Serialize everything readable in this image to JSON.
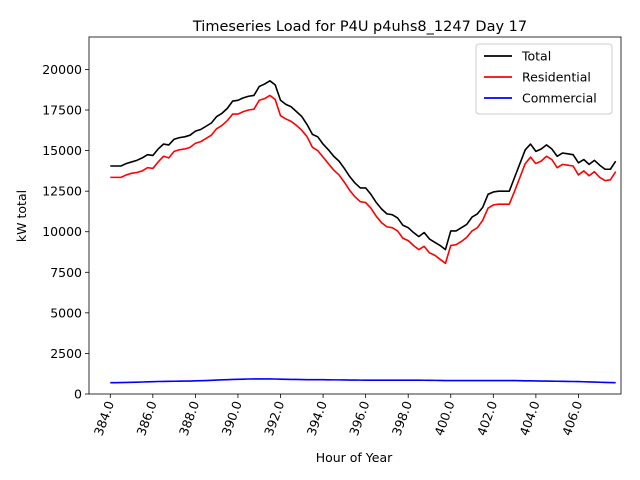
{
  "chart_data": {
    "type": "line",
    "title": "Timeseries Load for P4U p4uhs8_1247  Day 17",
    "xlabel": "Hour of Year",
    "ylabel": "kW total",
    "xlim": [
      383.0,
      408.0
    ],
    "ylim": [
      0,
      22000
    ],
    "x_ticks": [
      384,
      386,
      388,
      390,
      392,
      394,
      396,
      398,
      400,
      402,
      404,
      406
    ],
    "x_tick_labels": [
      "384.0",
      "386.0",
      "388.0",
      "390.0",
      "392.0",
      "394.0",
      "396.0",
      "398.0",
      "400.0",
      "402.0",
      "404.0",
      "406.0"
    ],
    "y_ticks": [
      0,
      2500,
      5000,
      7500,
      10000,
      12500,
      15000,
      17500,
      20000
    ],
    "y_tick_labels": [
      "0",
      "2500",
      "5000",
      "7500",
      "10000",
      "12500",
      "15000",
      "17500",
      "20000"
    ],
    "legend_position": "top-right",
    "x": [
      384.0,
      384.25,
      384.5,
      384.75,
      385.0,
      385.25,
      385.5,
      385.75,
      386.0,
      386.25,
      386.5,
      386.75,
      387.0,
      387.25,
      387.5,
      387.75,
      388.0,
      388.25,
      388.5,
      388.75,
      389.0,
      389.25,
      389.5,
      389.75,
      390.0,
      390.25,
      390.5,
      390.75,
      391.0,
      391.25,
      391.5,
      391.75,
      392.0,
      392.25,
      392.5,
      392.75,
      393.0,
      393.25,
      393.5,
      393.75,
      394.0,
      394.25,
      394.5,
      394.75,
      395.0,
      395.25,
      395.5,
      395.75,
      396.0,
      396.25,
      396.5,
      396.75,
      397.0,
      397.25,
      397.5,
      397.75,
      398.0,
      398.25,
      398.5,
      398.75,
      399.0,
      399.25,
      399.5,
      399.75,
      400.0,
      400.25,
      400.5,
      400.75,
      401.0,
      401.25,
      401.5,
      401.75,
      402.0,
      402.25,
      402.5,
      402.75,
      403.0,
      403.25,
      403.5,
      403.75,
      404.0,
      404.25,
      404.5,
      404.75,
      405.0,
      405.25,
      405.5,
      405.75,
      406.0,
      406.25,
      406.5,
      406.75,
      407.0,
      407.25,
      407.5,
      407.75
    ],
    "series": [
      {
        "name": "Total",
        "color": "#000000",
        "values": [
          14050,
          14050,
          14050,
          14200,
          14300,
          14400,
          14550,
          14750,
          14700,
          15100,
          15400,
          15350,
          15700,
          15800,
          15850,
          15950,
          16200,
          16300,
          16500,
          16700,
          17100,
          17300,
          17600,
          18050,
          18100,
          18250,
          18350,
          18400,
          18950,
          19100,
          19300,
          19050,
          18100,
          17850,
          17700,
          17400,
          17100,
          16600,
          16000,
          15850,
          15400,
          15050,
          14650,
          14350,
          13900,
          13400,
          13000,
          12700,
          12700,
          12300,
          11800,
          11400,
          11100,
          11050,
          10850,
          10400,
          10250,
          9950,
          9700,
          9950,
          9550,
          9350,
          9150,
          8900,
          10050,
          10050,
          10250,
          10450,
          10900,
          11100,
          11500,
          12300,
          12450,
          12500,
          12500,
          12500,
          13350,
          14200,
          15050,
          15400,
          14950,
          15100,
          15350,
          15100,
          14650,
          14850,
          14800,
          14750,
          14250,
          14450,
          14150,
          14400,
          14100,
          13850,
          13850,
          14350
        ]
      },
      {
        "name": "Residential",
        "color": "#ff0000",
        "values": [
          13350,
          13350,
          13350,
          13500,
          13600,
          13650,
          13750,
          13950,
          13900,
          14300,
          14650,
          14550,
          14950,
          15050,
          15100,
          15200,
          15450,
          15550,
          15750,
          15950,
          16350,
          16550,
          16850,
          17250,
          17250,
          17400,
          17500,
          17550,
          18100,
          18200,
          18400,
          18150,
          17150,
          16950,
          16800,
          16550,
          16250,
          15850,
          15200,
          15000,
          14600,
          14200,
          13800,
          13500,
          13050,
          12550,
          12150,
          11850,
          11800,
          11450,
          10950,
          10550,
          10300,
          10250,
          10050,
          9600,
          9450,
          9150,
          8900,
          9100,
          8700,
          8550,
          8300,
          8050,
          9150,
          9200,
          9400,
          9650,
          10050,
          10250,
          10700,
          11450,
          11650,
          11700,
          11700,
          11700,
          12500,
          13350,
          14200,
          14600,
          14200,
          14350,
          14650,
          14450,
          13950,
          14150,
          14100,
          14050,
          13500,
          13750,
          13450,
          13700,
          13350,
          13150,
          13200,
          13700
        ]
      },
      {
        "name": "Commercial",
        "color": "#0000ff",
        "values": [
          700,
          700,
          705,
          710,
          720,
          730,
          740,
          750,
          760,
          770,
          775,
          780,
          785,
          790,
          795,
          800,
          810,
          820,
          830,
          845,
          860,
          875,
          885,
          895,
          905,
          915,
          925,
          930,
          930,
          930,
          930,
          925,
          915,
          905,
          900,
          895,
          890,
          885,
          880,
          880,
          880,
          875,
          870,
          870,
          865,
          860,
          860,
          855,
          850,
          850,
          850,
          850,
          850,
          850,
          850,
          850,
          850,
          850,
          850,
          848,
          845,
          840,
          835,
          830,
          825,
          825,
          825,
          825,
          825,
          828,
          830,
          830,
          830,
          830,
          830,
          828,
          825,
          820,
          815,
          810,
          805,
          800,
          795,
          790,
          785,
          780,
          775,
          770,
          765,
          755,
          745,
          735,
          725,
          715,
          705,
          695
        ]
      }
    ]
  }
}
